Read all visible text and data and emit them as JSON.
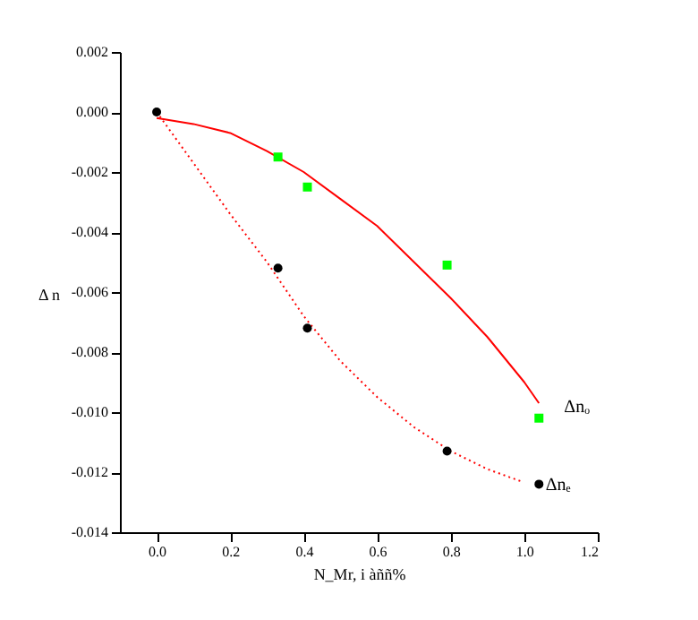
{
  "chart_data": {
    "type": "scatter",
    "xlabel": "N_Mr, i àññ%",
    "ylabel": "Δ n",
    "xlim": [
      -0.1,
      1.2
    ],
    "ylim": [
      -0.014,
      0.002
    ],
    "xticks": [
      {
        "value": 0,
        "label": "0.0"
      },
      {
        "value": 0.2,
        "label": "0.2"
      },
      {
        "value": 0.4,
        "label": "0.4"
      },
      {
        "value": 0.6,
        "label": "0.6"
      },
      {
        "value": 0.8,
        "label": "0.8"
      },
      {
        "value": 1.0,
        "label": "1.0"
      },
      {
        "value": 1.2,
        "label": "1.2"
      }
    ],
    "yticks": [
      {
        "value": 0.002,
        "label": "0.002"
      },
      {
        "value": 0,
        "label": "0.000"
      },
      {
        "value": -0.002,
        "label": "-0.002"
      },
      {
        "value": -0.004,
        "label": "-0.004"
      },
      {
        "value": -0.006,
        "label": "-0.006"
      },
      {
        "value": -0.008,
        "label": "-0.008"
      },
      {
        "value": -0.01,
        "label": "-0.010"
      },
      {
        "value": -0.012,
        "label": "-0.012"
      },
      {
        "value": -0.014,
        "label": "-0.014"
      }
    ],
    "grid": false,
    "series": [
      {
        "type": "line",
        "line_style": "solid",
        "marker": "none",
        "color": "#ff0000",
        "x": [
          0,
          0.1,
          0.2,
          0.3,
          0.4,
          0.5,
          0.6,
          0.7,
          0.8,
          0.9,
          1.0,
          1.04
        ],
        "values": [
          -0.0002,
          -0.0004,
          -0.0007,
          -0.0013,
          -0.002,
          -0.0029,
          -0.0038,
          -0.005,
          -0.0062,
          -0.0075,
          -0.009,
          -0.0097
        ]
      },
      {
        "type": "line",
        "line_style": "dotted",
        "marker": "none",
        "color": "#ff0000",
        "x": [
          0,
          0.1,
          0.2,
          0.3,
          0.4,
          0.5,
          0.6,
          0.7,
          0.8,
          0.9,
          0.99
        ],
        "values": [
          0,
          -0.0017,
          -0.0034,
          -0.005,
          -0.0068,
          -0.0083,
          -0.0095,
          -0.0105,
          -0.0113,
          -0.0119,
          -0.0123
        ]
      },
      {
        "marker": "square",
        "color": "#00ff00",
        "x": [
          0.33,
          0.41,
          0.79,
          1.04
        ],
        "values": [
          -0.0015,
          -0.0025,
          -0.0051,
          -0.0102
        ]
      },
      {
        "marker": "circle",
        "color": "#000000",
        "x": [
          0,
          0.33,
          0.41,
          0.79,
          1.04
        ],
        "values": [
          0,
          -0.0052,
          -0.0072,
          -0.0113,
          -0.0124
        ]
      }
    ],
    "annotations": [
      "Δnₒ",
      "Δnₑ"
    ]
  }
}
